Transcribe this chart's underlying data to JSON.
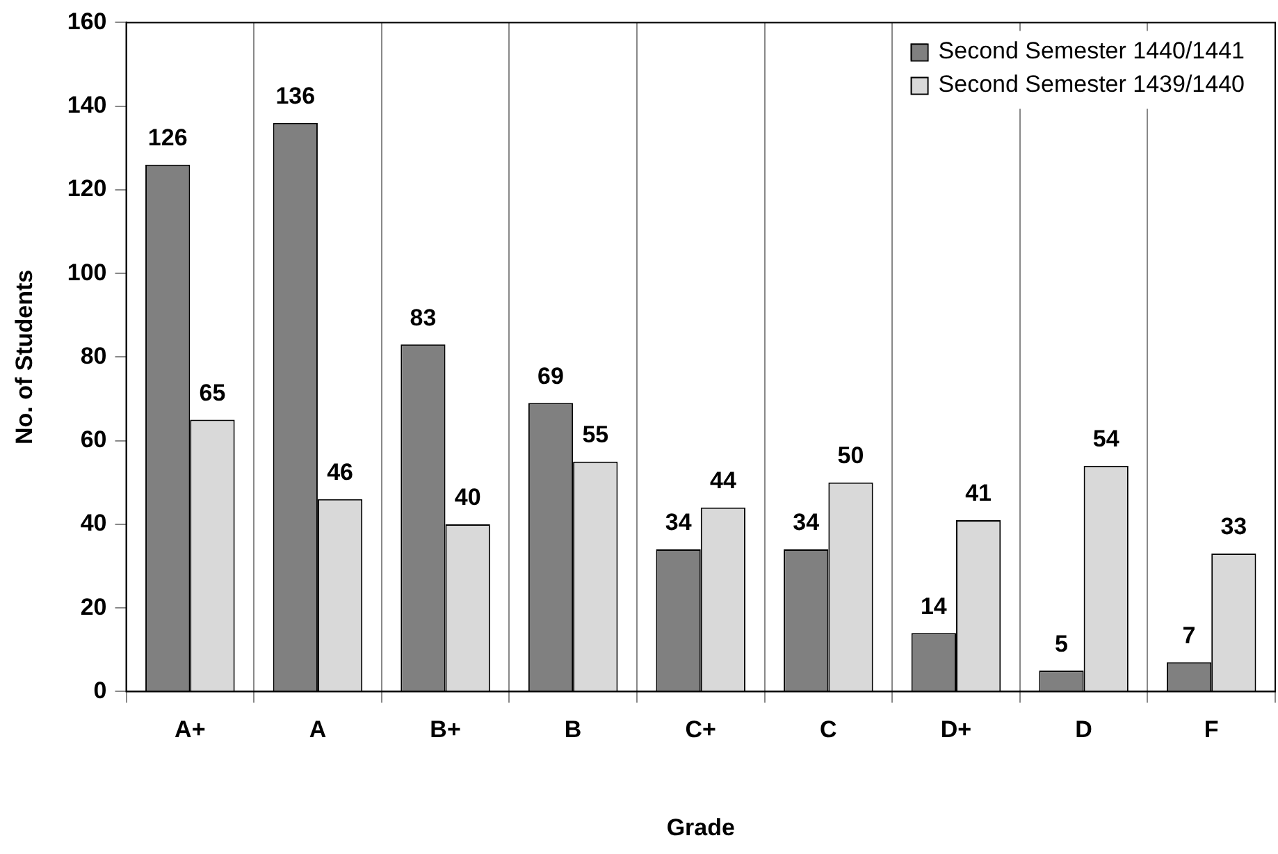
{
  "chart_data": {
    "type": "bar",
    "xlabel": "Grade",
    "ylabel": "No. of Students",
    "categories": [
      "A+",
      "A",
      "B+",
      "B",
      "C+",
      "C",
      "D+",
      "D",
      "F"
    ],
    "series": [
      {
        "name": "Second Semester 1440/1441",
        "color": "#808080",
        "values": [
          126,
          136,
          83,
          69,
          34,
          34,
          14,
          5,
          7
        ]
      },
      {
        "name": "Second Semester 1439/1440",
        "color": "#d9d9d9",
        "values": [
          65,
          46,
          40,
          55,
          44,
          50,
          41,
          54,
          33
        ]
      }
    ],
    "ylim": [
      0,
      160
    ],
    "yticks": [
      0,
      20,
      40,
      60,
      80,
      100,
      120,
      140,
      160
    ],
    "grid": "x",
    "legend": "top right",
    "data_labels": true
  }
}
